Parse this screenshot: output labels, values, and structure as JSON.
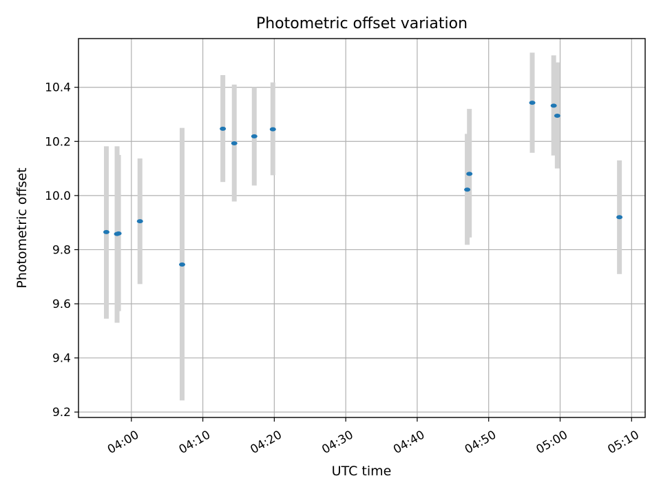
{
  "chart_data": {
    "type": "scatter",
    "title": "Photometric offset variation",
    "xlabel": "UTC time",
    "ylabel": "Photometric offset",
    "x_ticks": [
      "04:00",
      "04:10",
      "04:20",
      "04:30",
      "04:40",
      "04:50",
      "05:00",
      "05:10"
    ],
    "y_ticks": [
      "9.2",
      "9.4",
      "9.6",
      "9.8",
      "10.0",
      "10.2",
      "10.4"
    ],
    "xlim": [
      "03:52.6",
      "05:11.9"
    ],
    "ylim": [
      9.18,
      10.58
    ],
    "grid": true,
    "colors": {
      "point": "#1f77b4",
      "errorbar": "#d3d3d3",
      "grid": "#b0b0b0"
    },
    "points": [
      {
        "x": "03:56.5",
        "y": 9.865,
        "lo": 9.545,
        "hi": 10.182
      },
      {
        "x": "03:58.0",
        "y": 9.858,
        "lo": 9.53,
        "hi": 10.182
      },
      {
        "x": "03:58.2",
        "y": 9.86,
        "lo": 9.573,
        "hi": 10.15
      },
      {
        "x": "04:01.2",
        "y": 9.905,
        "lo": 9.673,
        "hi": 10.137
      },
      {
        "x": "04:07.1",
        "y": 9.745,
        "lo": 9.243,
        "hi": 10.25
      },
      {
        "x": "04:12.8",
        "y": 10.247,
        "lo": 10.05,
        "hi": 10.445
      },
      {
        "x": "04:14.4",
        "y": 10.193,
        "lo": 9.978,
        "hi": 10.41
      },
      {
        "x": "04:17.2",
        "y": 10.219,
        "lo": 10.037,
        "hi": 10.4
      },
      {
        "x": "04:19.8",
        "y": 10.245,
        "lo": 10.075,
        "hi": 10.418
      },
      {
        "x": "04:47.0",
        "y": 10.022,
        "lo": 9.818,
        "hi": 10.228
      },
      {
        "x": "04:47.3",
        "y": 10.08,
        "lo": 9.845,
        "hi": 10.32
      },
      {
        "x": "04:56.1",
        "y": 10.343,
        "lo": 10.158,
        "hi": 10.528
      },
      {
        "x": "04:59.1",
        "y": 10.332,
        "lo": 10.148,
        "hi": 10.518
      },
      {
        "x": "04:59.6",
        "y": 10.295,
        "lo": 10.1,
        "hi": 10.492
      },
      {
        "x": "05:08.3",
        "y": 9.92,
        "lo": 9.71,
        "hi": 10.13
      }
    ]
  }
}
